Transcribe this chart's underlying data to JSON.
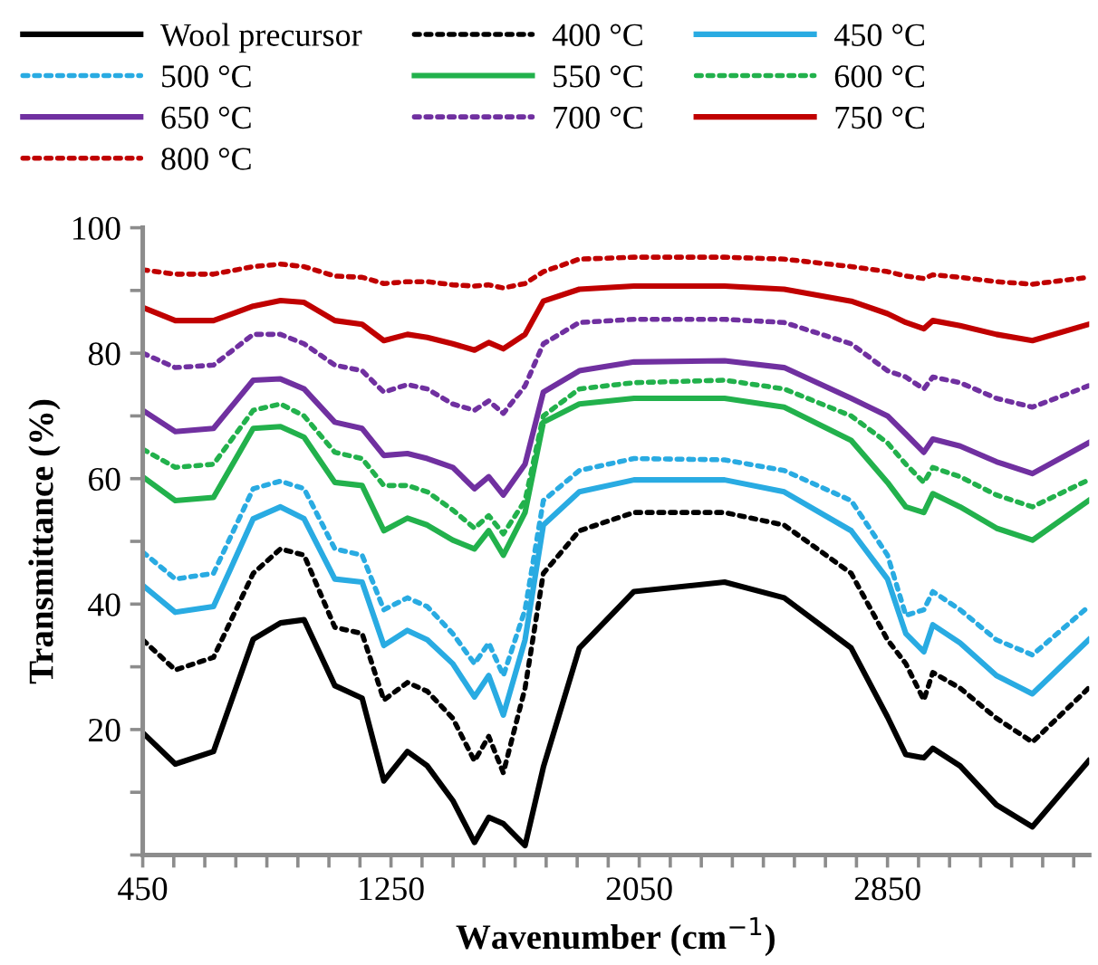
{
  "chart_data": {
    "type": "line",
    "xlabel": "Wavenumber (cm$^{−1}$)",
    "ylabel": "Transmittance (%)",
    "x": [
      450,
      555,
      678,
      806,
      894,
      970,
      1069,
      1157,
      1227,
      1303,
      1367,
      1449,
      1519,
      1565,
      1612,
      1682,
      1741,
      1857,
      2033,
      2325,
      2517,
      2733,
      2850,
      2909,
      2967,
      2996,
      3084,
      3201,
      3317,
      3498
    ],
    "series": [
      {
        "name": "Wool precursor",
        "color": "#000000",
        "line_style": "solid",
        "values": [
          19.5,
          14.5,
          16.5,
          34.4,
          37,
          37.5,
          27,
          25,
          11.8,
          16.5,
          14.2,
          8.7,
          2,
          6,
          5,
          1.5,
          14,
          33,
          42,
          43.5,
          41,
          33,
          22,
          16,
          15.5,
          17,
          14.2,
          8,
          4.5,
          15
        ]
      },
      {
        "name": "400 °C",
        "color": "#000000",
        "line_style": "dotted",
        "values": [
          34.3,
          29.5,
          31.5,
          44.9,
          48.8,
          47.8,
          36.3,
          35.3,
          24.7,
          27.5,
          26.1,
          21.8,
          15,
          18.9,
          13.1,
          26.6,
          44.9,
          51.7,
          54.6,
          54.6,
          52.6,
          44.9,
          34.3,
          30.5,
          24.7,
          29.1,
          26.6,
          21.8,
          18,
          26.6
        ]
      },
      {
        "name": "450 °C",
        "color": "#29abe2",
        "line_style": "solid",
        "values": [
          43,
          38.7,
          39.6,
          53.6,
          55.5,
          53.6,
          44,
          43.5,
          33.4,
          35.8,
          34.3,
          30.5,
          25.2,
          28.6,
          22.3,
          34.3,
          52.6,
          57.9,
          59.8,
          59.8,
          57.9,
          51.7,
          44,
          35.3,
          32.4,
          36.7,
          33.8,
          28.6,
          25.7,
          34.3
        ]
      },
      {
        "name": "500 °C",
        "color": "#29abe2",
        "line_style": "dotted",
        "values": [
          48.3,
          44,
          44.9,
          58.4,
          59.6,
          58.4,
          48.8,
          47.8,
          39.1,
          41,
          39.6,
          35.3,
          30.5,
          33.8,
          28.6,
          39.1,
          56.5,
          61.3,
          63.2,
          63,
          61.3,
          56.5,
          47.8,
          38.2,
          39.1,
          42,
          39.1,
          34.3,
          31.9,
          39.6
        ]
      },
      {
        "name": "550 °C",
        "color": "#22b14c",
        "line_style": "solid",
        "values": [
          60.3,
          56.5,
          57,
          68,
          68.3,
          66.6,
          59.4,
          58.9,
          51.7,
          53.7,
          52.6,
          50.2,
          48.8,
          51.7,
          47.8,
          54.6,
          69,
          71.9,
          72.8,
          72.8,
          71.4,
          66.1,
          59.4,
          55.5,
          54.6,
          57.6,
          55.5,
          52.1,
          50.2,
          56.5
        ]
      },
      {
        "name": "600 °C",
        "color": "#22b14c",
        "line_style": "dotted",
        "values": [
          64.7,
          61.8,
          62.3,
          70.9,
          71.9,
          70,
          64.2,
          63.2,
          58.9,
          58.9,
          57.9,
          55,
          52.1,
          54.1,
          51.2,
          56.5,
          70,
          74.3,
          75.3,
          75.7,
          74.3,
          70,
          65.7,
          62.3,
          59.4,
          61.8,
          60.3,
          57.4,
          55.5,
          59.8
        ]
      },
      {
        "name": "650 °C",
        "color": "#7030a0",
        "line_style": "solid",
        "values": [
          70.9,
          67.5,
          68,
          75.7,
          75.9,
          74.3,
          69,
          68,
          63.7,
          64,
          63.2,
          61.8,
          58.4,
          60.3,
          57.4,
          62.3,
          73.8,
          77.2,
          78.6,
          78.8,
          77.7,
          72.8,
          70,
          67.1,
          64.2,
          66.3,
          65.2,
          62.7,
          60.8,
          65.7
        ]
      },
      {
        "name": "700 °C",
        "color": "#7030a0",
        "line_style": "dotted",
        "values": [
          80,
          77.7,
          78.1,
          83,
          83,
          81.5,
          78.1,
          77.2,
          73.8,
          75,
          74.3,
          71.9,
          70.9,
          72.4,
          70.4,
          74.8,
          81.5,
          84.9,
          85.4,
          85.4,
          84.9,
          81.5,
          77.2,
          76.2,
          74.3,
          76.2,
          75.3,
          72.8,
          71.4,
          74.8
        ]
      },
      {
        "name": "750 °C",
        "color": "#c00000",
        "line_style": "solid",
        "values": [
          87.3,
          85.2,
          85.2,
          87.5,
          88.4,
          88.1,
          85.2,
          84.6,
          82,
          83,
          82.5,
          81.5,
          80.5,
          81.7,
          80.7,
          83,
          88.3,
          90.2,
          90.7,
          90.7,
          90.2,
          88.3,
          86.3,
          84.9,
          83.9,
          85.2,
          84.4,
          83,
          82,
          84.6
        ]
      },
      {
        "name": "800 °C",
        "color": "#c00000",
        "line_style": "dotted",
        "values": [
          93.3,
          92.6,
          92.6,
          93.8,
          94.2,
          93.8,
          92.3,
          92.1,
          91.1,
          91.4,
          91.4,
          90.9,
          90.7,
          90.9,
          90.4,
          91.1,
          93,
          95,
          95.3,
          95.3,
          95,
          93.8,
          93,
          92.3,
          91.9,
          92.5,
          92.1,
          91.4,
          91,
          92.1
        ]
      }
    ],
    "xlim": [
      450,
      3500
    ],
    "xticks": [
      450,
      {
        "value": 550,
        "label": null
      },
      {
        "value": 650,
        "label": null
      },
      {
        "value": 750,
        "label": null
      },
      {
        "value": 850,
        "label": null
      },
      {
        "value": 950,
        "label": null
      },
      {
        "value": 1050,
        "label": null
      },
      {
        "value": 1150,
        "label": null
      },
      1250,
      {
        "value": 1350,
        "label": null
      },
      {
        "value": 1450,
        "label": null
      },
      {
        "value": 1550,
        "label": null
      },
      {
        "value": 1650,
        "label": null
      },
      {
        "value": 1750,
        "label": null
      },
      {
        "value": 1850,
        "label": null
      },
      {
        "value": 1950,
        "label": null
      },
      2050,
      {
        "value": 2150,
        "label": null
      },
      {
        "value": 2250,
        "label": null
      },
      {
        "value": 2350,
        "label": null
      },
      {
        "value": 2450,
        "label": null
      },
      {
        "value": 2550,
        "label": null
      },
      {
        "value": 2650,
        "label": null
      },
      {
        "value": 2750,
        "label": null
      },
      2850,
      {
        "value": 2950,
        "label": null
      },
      {
        "value": 3050,
        "label": null
      },
      {
        "value": 3150,
        "label": null
      },
      {
        "value": 3250,
        "label": null
      },
      {
        "value": 3350,
        "label": null
      },
      {
        "value": 3450,
        "label": null
      }
    ],
    "ylim": [
      0,
      100
    ],
    "yticks": [
      {
        "value": 0,
        "label": null
      },
      {
        "value": 10,
        "label": null
      },
      20,
      {
        "value": 30,
        "label": null
      },
      40,
      {
        "value": 50,
        "label": null
      },
      60,
      {
        "value": 70,
        "label": null
      },
      80,
      {
        "value": 90,
        "label": null
      },
      100
    ],
    "grid": false,
    "legend": "top",
    "marker": "none"
  }
}
